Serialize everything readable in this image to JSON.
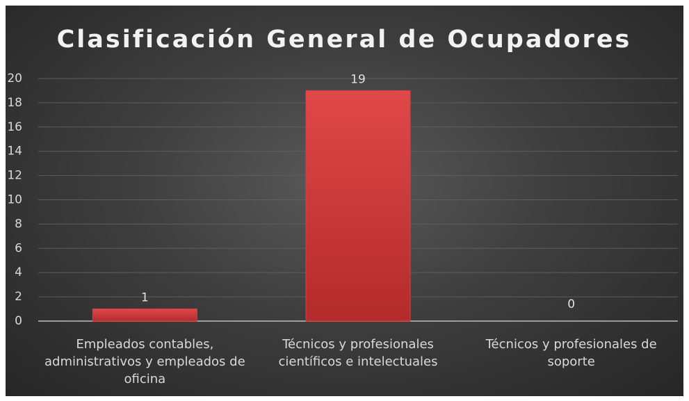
{
  "chart_data": {
    "type": "bar",
    "title": "Clasificación General de Ocupadores",
    "categories": [
      "Empleados contables, administrativos y empleados de oficina",
      "Técnicos y profesionales científicos e intelectuales",
      "Técnicos y profesionales de soporte"
    ],
    "values": [
      1,
      19,
      0
    ],
    "color": "#d94040",
    "ylim": [
      0,
      20
    ],
    "yticks": [
      0,
      2,
      4,
      6,
      8,
      10,
      12,
      14,
      16,
      18,
      20
    ],
    "grid": true
  }
}
